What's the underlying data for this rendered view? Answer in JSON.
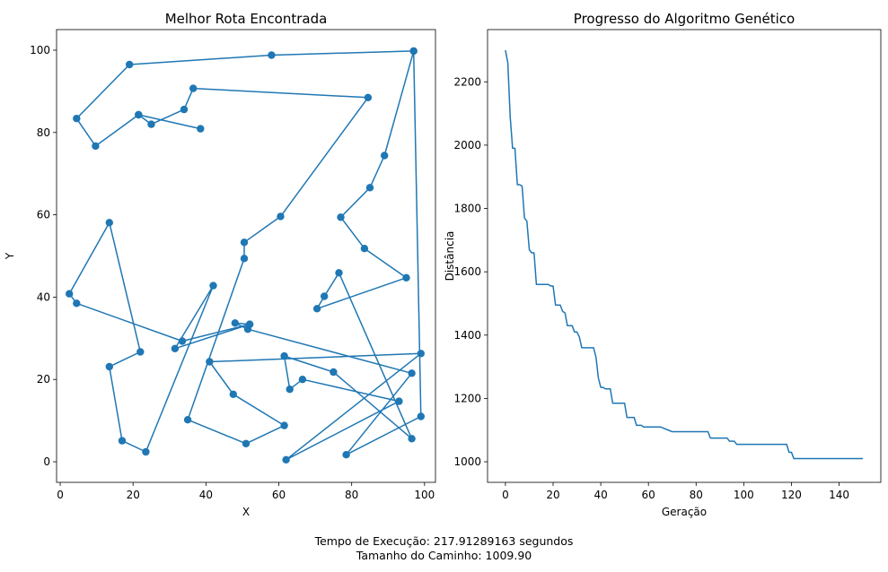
{
  "chart_data": [
    {
      "type": "line",
      "title": "Melhor Rota Encontrada",
      "xlabel": "X",
      "ylabel": "Y",
      "xlim": [
        -1,
        103
      ],
      "ylim": [
        -5,
        105
      ],
      "xticks": [
        0,
        20,
        40,
        60,
        80,
        100
      ],
      "yticks": [
        0,
        20,
        40,
        60,
        80,
        100
      ],
      "markers": true,
      "color": "#1f77b4",
      "route": [
        [
          97,
          99.8
        ],
        [
          58,
          98.8
        ],
        [
          19,
          96.5
        ],
        [
          4.5,
          83.4
        ],
        [
          9.7,
          76.7
        ],
        [
          21.5,
          84.3
        ],
        [
          38.5,
          80.9
        ],
        [
          21.5,
          84.3
        ],
        [
          25,
          82
        ],
        [
          34,
          85.6
        ],
        [
          36.5,
          90.7
        ],
        [
          84.5,
          88.5
        ],
        [
          60.5,
          59.6
        ],
        [
          50.5,
          53.3
        ],
        [
          50.5,
          49.4
        ],
        [
          35,
          10.2
        ],
        [
          51,
          4.4
        ],
        [
          61.5,
          8.8
        ],
        [
          47.5,
          16.4
        ],
        [
          41,
          24.3
        ],
        [
          99,
          26.3
        ],
        [
          62,
          0.5
        ],
        [
          93,
          14.7
        ],
        [
          66.5,
          20
        ],
        [
          63,
          17.6
        ],
        [
          61.5,
          25.7
        ],
        [
          75,
          21.8
        ],
        [
          96.5,
          5.6
        ],
        [
          76.5,
          45.9
        ],
        [
          72.5,
          40.2
        ],
        [
          70.5,
          37.2
        ],
        [
          95,
          44.7
        ],
        [
          83.5,
          51.8
        ],
        [
          77,
          59.4
        ],
        [
          85,
          66.6
        ],
        [
          89,
          74.4
        ],
        [
          97,
          99.8
        ]
      ],
      "route_tail": [
        [
          99,
          11
        ],
        [
          78.5,
          1.7
        ],
        [
          96.5,
          21.5
        ],
        [
          51.5,
          32.2
        ],
        [
          48,
          33.7
        ],
        [
          52,
          33.4
        ],
        [
          31.5,
          27.5
        ],
        [
          42,
          42.8
        ],
        [
          23.5,
          2.4
        ],
        [
          17,
          5.1
        ],
        [
          13.5,
          23.1
        ],
        [
          22,
          26.7
        ],
        [
          13.5,
          58.1
        ],
        [
          2.5,
          40.8
        ],
        [
          4.5,
          38.5
        ],
        [
          33.5,
          29.3
        ],
        [
          52,
          33.4
        ]
      ]
    },
    {
      "type": "line",
      "title": "Progresso do Algoritmo Genético",
      "xlabel": "Geração",
      "ylabel": "Distância",
      "xlim": [
        -7.5,
        157.5
      ],
      "ylim": [
        935,
        2365
      ],
      "xticks": [
        0,
        20,
        40,
        60,
        80,
        100,
        120,
        140
      ],
      "yticks": [
        1000,
        1200,
        1400,
        1600,
        1800,
        2000,
        2200
      ],
      "color": "#1f77b4",
      "x": [
        0,
        1,
        2,
        3,
        4,
        5,
        6,
        7,
        8,
        9,
        10,
        11,
        12,
        13,
        14,
        15,
        16,
        17,
        18,
        19,
        20,
        21,
        22,
        23,
        24,
        25,
        26,
        27,
        28,
        29,
        30,
        31,
        32,
        33,
        34,
        35,
        36,
        37,
        38,
        39,
        40,
        41,
        42,
        43,
        44,
        45,
        46,
        47,
        48,
        49,
        50,
        51,
        52,
        53,
        54,
        55,
        56,
        57,
        58,
        59,
        60,
        65,
        70,
        75,
        80,
        85,
        86,
        87,
        90,
        93,
        94,
        95,
        96,
        97,
        100,
        105,
        110,
        115,
        118,
        119,
        120,
        121,
        130,
        140,
        150
      ],
      "values": [
        2300,
        2260,
        2090,
        1990,
        1990,
        1875,
        1875,
        1870,
        1770,
        1760,
        1670,
        1660,
        1660,
        1560,
        1560,
        1560,
        1560,
        1560,
        1560,
        1555,
        1555,
        1495,
        1495,
        1495,
        1475,
        1470,
        1430,
        1430,
        1430,
        1410,
        1410,
        1395,
        1360,
        1360,
        1360,
        1360,
        1360,
        1360,
        1330,
        1265,
        1235,
        1235,
        1230,
        1230,
        1230,
        1185,
        1185,
        1185,
        1185,
        1185,
        1185,
        1140,
        1140,
        1140,
        1140,
        1115,
        1115,
        1115,
        1110,
        1110,
        1110,
        1110,
        1095,
        1095,
        1095,
        1095,
        1075,
        1075,
        1075,
        1075,
        1065,
        1065,
        1065,
        1055,
        1055,
        1055,
        1055,
        1055,
        1055,
        1030,
        1030,
        1010,
        1010,
        1010,
        1010
      ]
    }
  ],
  "footer": {
    "exec_time": "Tempo de Execução: 217.91289163 segundos",
    "path_size": "Tamanho do Caminho: 1009.90"
  }
}
